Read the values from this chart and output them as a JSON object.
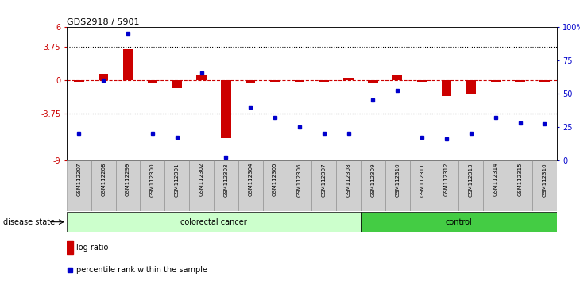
{
  "title": "GDS2918 / 5901",
  "samples": [
    "GSM112207",
    "GSM112208",
    "GSM112299",
    "GSM112300",
    "GSM112301",
    "GSM112302",
    "GSM112303",
    "GSM112304",
    "GSM112305",
    "GSM112306",
    "GSM112307",
    "GSM112308",
    "GSM112309",
    "GSM112310",
    "GSM112311",
    "GSM112312",
    "GSM112313",
    "GSM112314",
    "GSM112315",
    "GSM112316"
  ],
  "log_ratio": [
    -0.15,
    0.7,
    3.5,
    -0.4,
    -0.9,
    0.5,
    -6.5,
    -0.3,
    -0.2,
    -0.15,
    -0.2,
    0.25,
    -0.4,
    0.5,
    -0.15,
    -1.8,
    -1.6,
    -0.15,
    -0.2,
    -0.15
  ],
  "percentile": [
    20,
    60,
    95,
    20,
    17,
    65,
    2,
    40,
    32,
    25,
    20,
    20,
    45,
    52,
    17,
    16,
    20,
    32,
    28,
    27
  ],
  "colorectal_cancer_count": 12,
  "control_count": 8,
  "ylim_left": [
    -9,
    6
  ],
  "ylim_right": [
    0,
    100
  ],
  "yticks_left": [
    -9,
    -3.75,
    0,
    3.75,
    6
  ],
  "yticks_right": [
    0,
    25,
    50,
    75,
    100
  ],
  "hline_y": [
    -3.75,
    3.75
  ],
  "bar_color": "#cc0000",
  "dot_color": "#0000cc",
  "dashed_line_color": "#cc0000",
  "colorectal_color": "#ccffcc",
  "control_color": "#44cc44",
  "label_color_left": "#cc0000",
  "label_color_right": "#0000cc",
  "legend_bar_label": "log ratio",
  "legend_dot_label": "percentile rank within the sample",
  "disease_state_label": "disease state",
  "colorectal_label": "colorectal cancer",
  "control_label": "control"
}
